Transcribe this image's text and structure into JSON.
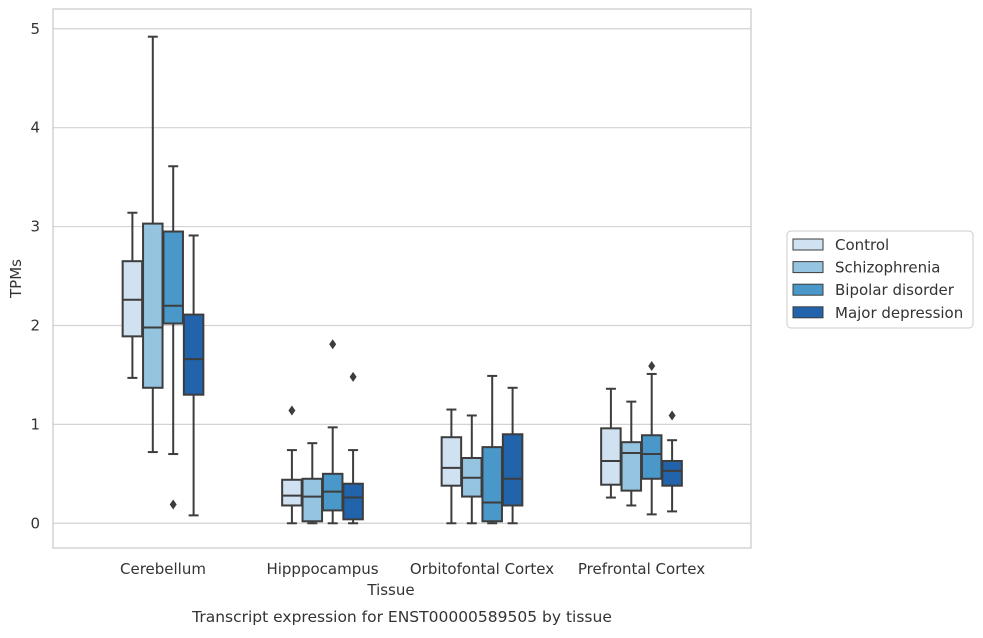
{
  "chart_data": {
    "type": "boxplot",
    "title": "",
    "caption": "Transcript expression for ENST00000589505 by tissue",
    "xlabel": "Tissue",
    "ylabel": "TPMs",
    "ylim": [
      -0.25,
      5.2
    ],
    "yticks": [
      0,
      1,
      2,
      3,
      4,
      5
    ],
    "grid": "horizontal",
    "legend_position": "right",
    "categories": [
      "Cerebellum",
      "Hipppocampus",
      "Orbitofontal Cortex",
      "Prefrontal Cortex"
    ],
    "series": [
      {
        "name": "Control",
        "color": "#d0e1f2",
        "boxes": [
          {
            "min": 1.47,
            "q1": 1.89,
            "median": 2.26,
            "q3": 2.65,
            "max": 3.14,
            "outliers": []
          },
          {
            "min": 0.0,
            "q1": 0.18,
            "median": 0.28,
            "q3": 0.44,
            "max": 0.74,
            "outliers": [
              1.14
            ]
          },
          {
            "min": 0.0,
            "q1": 0.38,
            "median": 0.56,
            "q3": 0.87,
            "max": 1.15,
            "outliers": []
          },
          {
            "min": 0.26,
            "q1": 0.39,
            "median": 0.63,
            "q3": 0.96,
            "max": 1.36,
            "outliers": []
          }
        ]
      },
      {
        "name": "Schizophrenia",
        "color": "#94c4df",
        "boxes": [
          {
            "min": 0.72,
            "q1": 1.37,
            "median": 1.98,
            "q3": 3.03,
            "max": 4.92,
            "outliers": []
          },
          {
            "min": 0.0,
            "q1": 0.02,
            "median": 0.27,
            "q3": 0.45,
            "max": 0.81,
            "outliers": []
          },
          {
            "min": 0.0,
            "q1": 0.27,
            "median": 0.46,
            "q3": 0.66,
            "max": 1.09,
            "outliers": []
          },
          {
            "min": 0.18,
            "q1": 0.33,
            "median": 0.71,
            "q3": 0.82,
            "max": 1.23,
            "outliers": []
          }
        ]
      },
      {
        "name": "Bipolar disorder",
        "color": "#4a98c9",
        "boxes": [
          {
            "min": 0.7,
            "q1": 2.02,
            "median": 2.2,
            "q3": 2.95,
            "max": 3.61,
            "outliers": [
              0.19
            ]
          },
          {
            "min": 0.0,
            "q1": 0.13,
            "median": 0.32,
            "q3": 0.5,
            "max": 0.97,
            "outliers": [
              1.81
            ]
          },
          {
            "min": 0.0,
            "q1": 0.02,
            "median": 0.21,
            "q3": 0.77,
            "max": 1.49,
            "outliers": []
          },
          {
            "min": 0.09,
            "q1": 0.45,
            "median": 0.7,
            "q3": 0.89,
            "max": 1.51,
            "outliers": [
              1.59
            ]
          }
        ]
      },
      {
        "name": "Major depression",
        "color": "#2164ab",
        "boxes": [
          {
            "min": 0.08,
            "q1": 1.3,
            "median": 1.66,
            "q3": 2.11,
            "max": 2.91,
            "outliers": []
          },
          {
            "min": 0.0,
            "q1": 0.04,
            "median": 0.26,
            "q3": 0.4,
            "max": 0.74,
            "outliers": [
              1.48
            ]
          },
          {
            "min": 0.0,
            "q1": 0.18,
            "median": 0.45,
            "q3": 0.9,
            "max": 1.37,
            "outliers": []
          },
          {
            "min": 0.12,
            "q1": 0.38,
            "median": 0.53,
            "q3": 0.63,
            "max": 0.84,
            "outliers": [
              1.09
            ]
          }
        ]
      }
    ]
  }
}
